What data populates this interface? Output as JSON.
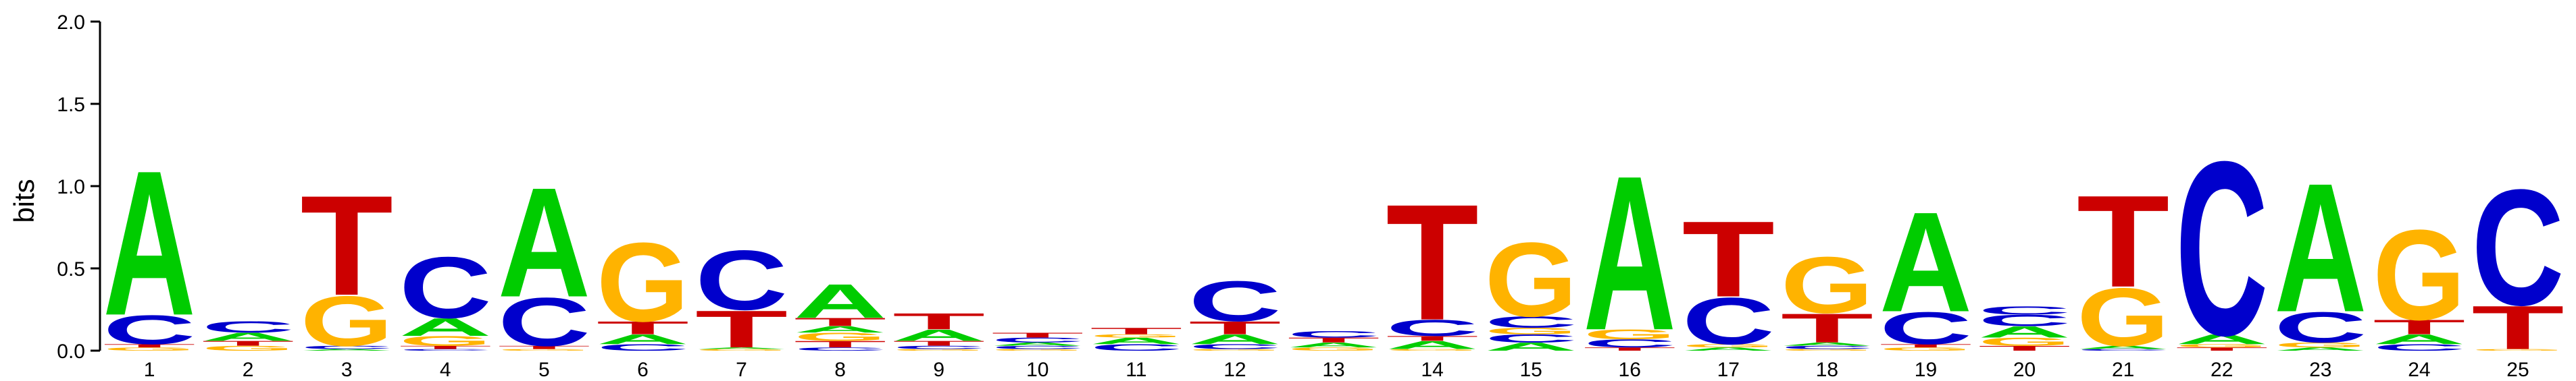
{
  "chart_data": {
    "type": "sequence-logo",
    "ylabel": "bits",
    "ylim": [
      0,
      2.0
    ],
    "yticks": [
      "0.0",
      "0.5",
      "1.0",
      "1.5",
      "2.0"
    ],
    "xticks": [
      "1",
      "2",
      "3",
      "4",
      "5",
      "6",
      "7",
      "8",
      "9",
      "10",
      "11",
      "12",
      "13",
      "14",
      "15",
      "16",
      "17",
      "18",
      "19",
      "20",
      "21",
      "22",
      "23",
      "24",
      "25"
    ],
    "colors": {
      "A": "#00CC00",
      "C": "#0000CC",
      "G": "#FFB300",
      "T": "#CC0000"
    },
    "positions": [
      [
        [
          "G",
          0.02
        ],
        [
          "T",
          0.02
        ],
        [
          "C",
          0.18
        ],
        [
          "A",
          0.9
        ]
      ],
      [
        [
          "G",
          0.03
        ],
        [
          "T",
          0.03
        ],
        [
          "A",
          0.05
        ],
        [
          "C",
          0.07
        ]
      ],
      [
        [
          "A",
          0.01
        ],
        [
          "C",
          0.02
        ],
        [
          "G",
          0.31
        ],
        [
          "T",
          0.62
        ]
      ],
      [
        [
          "C",
          0.01
        ],
        [
          "T",
          0.02
        ],
        [
          "G",
          0.06
        ],
        [
          "A",
          0.11
        ],
        [
          "C",
          0.38
        ]
      ],
      [
        [
          "G",
          0.01
        ],
        [
          "T",
          0.02
        ],
        [
          "C",
          0.3
        ],
        [
          "A",
          0.68
        ]
      ],
      [
        [
          "C",
          0.04
        ],
        [
          "A",
          0.06
        ],
        [
          "T",
          0.08
        ],
        [
          "G",
          0.49
        ]
      ],
      [
        [
          "G",
          0.01
        ],
        [
          "A",
          0.01
        ],
        [
          "T",
          0.23
        ],
        [
          "C",
          0.37
        ]
      ],
      [
        [
          "C",
          0.02
        ],
        [
          "T",
          0.04
        ],
        [
          "G",
          0.05
        ],
        [
          "A",
          0.04
        ],
        [
          "T",
          0.05
        ],
        [
          "A",
          0.21
        ]
      ],
      [
        [
          "G",
          0.01
        ],
        [
          "C",
          0.02
        ],
        [
          "T",
          0.03
        ],
        [
          "A",
          0.07
        ],
        [
          "T",
          0.1
        ]
      ],
      [
        [
          "G",
          0.01
        ],
        [
          "C",
          0.02
        ],
        [
          "A",
          0.02
        ],
        [
          "C",
          0.03
        ],
        [
          "T",
          0.03
        ]
      ],
      [
        [
          "C",
          0.04
        ],
        [
          "A",
          0.04
        ],
        [
          "G",
          0.02
        ],
        [
          "T",
          0.04
        ]
      ],
      [
        [
          "G",
          0.01
        ],
        [
          "C",
          0.03
        ],
        [
          "A",
          0.06
        ],
        [
          "T",
          0.08
        ],
        [
          "C",
          0.25
        ]
      ],
      [
        [
          "G",
          0.02
        ],
        [
          "A",
          0.03
        ],
        [
          "T",
          0.03
        ],
        [
          "C",
          0.04
        ]
      ],
      [
        [
          "G",
          0.01
        ],
        [
          "A",
          0.05
        ],
        [
          "T",
          0.03
        ],
        [
          "C",
          0.1
        ],
        [
          "T",
          0.72
        ]
      ],
      [
        [
          "A",
          0.05
        ],
        [
          "C",
          0.05
        ],
        [
          "G",
          0.04
        ],
        [
          "C",
          0.07
        ],
        [
          "G",
          0.46
        ]
      ],
      [
        [
          "T",
          0.02
        ],
        [
          "C",
          0.05
        ],
        [
          "G",
          0.06
        ],
        [
          "A",
          0.96
        ]
      ],
      [
        [
          "A",
          0.02
        ],
        [
          "G",
          0.02
        ],
        [
          "C",
          0.29
        ],
        [
          "T",
          0.47
        ]
      ],
      [
        [
          "G",
          0.01
        ],
        [
          "C",
          0.02
        ],
        [
          "A",
          0.02
        ],
        [
          "T",
          0.18
        ],
        [
          "G",
          0.35
        ]
      ],
      [
        [
          "G",
          0.02
        ],
        [
          "T",
          0.02
        ],
        [
          "C",
          0.2
        ],
        [
          "A",
          0.62
        ]
      ],
      [
        [
          "T",
          0.03
        ],
        [
          "G",
          0.05
        ],
        [
          "A",
          0.07
        ],
        [
          "C",
          0.07
        ],
        [
          "C",
          0.05
        ]
      ],
      [
        [
          "C",
          0.01
        ],
        [
          "A",
          0.02
        ],
        [
          "G",
          0.36
        ],
        [
          "T",
          0.57
        ]
      ],
      [
        [
          "T",
          0.02
        ],
        [
          "G",
          0.02
        ],
        [
          "A",
          0.06
        ],
        [
          "C",
          1.08
        ]
      ],
      [
        [
          "A",
          0.02
        ],
        [
          "G",
          0.03
        ],
        [
          "C",
          0.19
        ],
        [
          "A",
          0.8
        ]
      ],
      [
        [
          "C",
          0.04
        ],
        [
          "A",
          0.06
        ],
        [
          "T",
          0.09
        ],
        [
          "G",
          0.56
        ]
      ],
      [
        [
          "G",
          0.01
        ],
        [
          "T",
          0.27
        ],
        [
          "C",
          0.72
        ]
      ]
    ]
  }
}
